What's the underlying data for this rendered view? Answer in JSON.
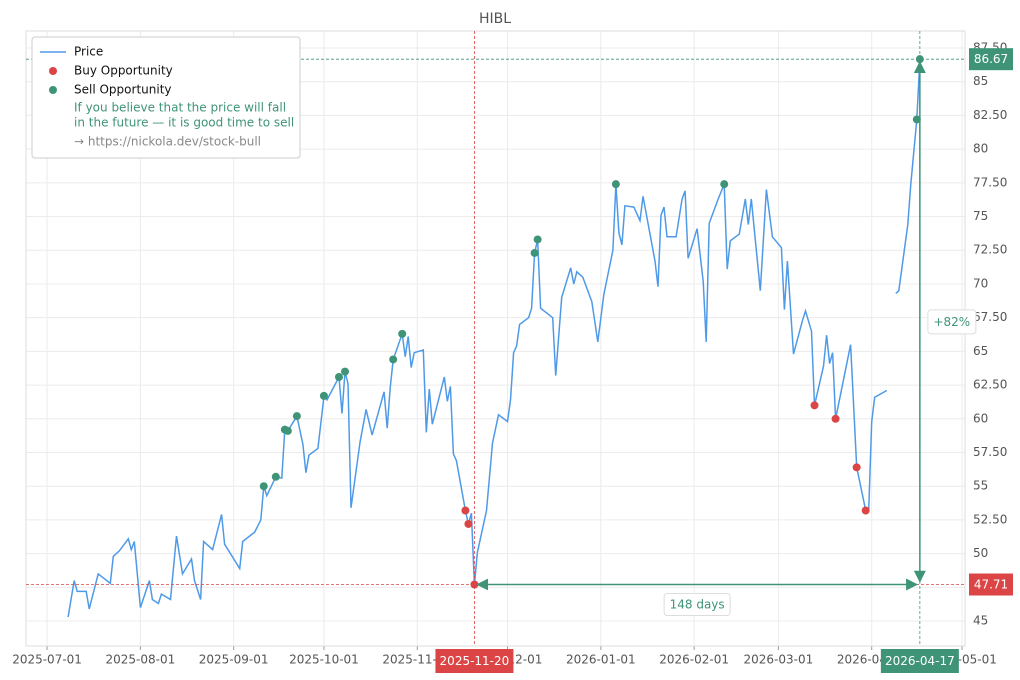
{
  "chart_data": {
    "type": "line",
    "title": "HIBL",
    "xlim": [
      "2025-06-24",
      "2026-05-02"
    ],
    "xticks": [
      "2025-07-01",
      "2025-08-01",
      "2025-09-01",
      "2025-10-01",
      "2025-11-01",
      "2025-12-01",
      "2026-01-01",
      "2026-02-01",
      "2026-03-01",
      "2026-04-01",
      "2026-05-01"
    ],
    "ylim": [
      43.15,
      88.76
    ],
    "yticks": [
      45,
      {
        "value": 47.5,
        "label": "47.50"
      },
      50,
      {
        "value": 52.5,
        "label": "52.50"
      },
      55,
      {
        "value": 57.5,
        "label": "57.50"
      },
      60,
      {
        "value": 62.5,
        "label": "62.50"
      },
      65,
      {
        "value": 67.5,
        "label": "67.50"
      },
      70,
      {
        "value": 72.5,
        "label": "72.50"
      },
      75,
      {
        "value": 77.5,
        "label": "77.50"
      },
      80,
      {
        "value": 82.5,
        "label": "82.50"
      },
      85,
      {
        "value": 87.5,
        "label": "87.50"
      }
    ],
    "grid": true,
    "legend": "upper left",
    "legend_notes": [
      "If you believe that the price will fall",
      "in the future — it is good time to sell",
      "→ https://nickola.dev/stock-bull"
    ],
    "series": [
      {
        "name": "Price",
        "type": "line",
        "color": "#4f9ae8",
        "x": [
          "2025-07-08",
          "2025-07-10",
          "2025-07-11",
          "2025-07-14",
          "2025-07-15",
          "2025-07-18",
          "2025-07-22",
          "2025-07-23",
          "2025-07-25",
          "2025-07-28",
          "2025-07-29",
          "2025-07-30",
          "2025-08-01",
          "2025-08-04",
          "2025-08-05",
          "2025-08-07",
          "2025-08-08",
          "2025-08-11",
          "2025-08-13",
          "2025-08-15",
          "2025-08-18",
          "2025-08-19",
          "2025-08-21",
          "2025-08-22",
          "2025-08-25",
          "2025-08-28",
          "2025-08-29",
          "2025-09-03",
          "2025-09-04",
          "2025-09-08",
          "2025-09-10",
          "2025-09-11",
          "2025-09-12",
          "2025-09-15",
          "2025-09-17",
          "2025-09-18",
          "2025-09-19",
          "2025-09-22",
          "2025-09-24",
          "2025-09-25",
          "2025-09-26",
          "2025-09-29",
          "2025-10-01",
          "2025-10-02",
          "2025-10-06",
          "2025-10-07",
          "2025-10-08",
          "2025-10-09",
          "2025-10-10",
          "2025-10-13",
          "2025-10-15",
          "2025-10-17",
          "2025-10-21",
          "2025-10-22",
          "2025-10-23",
          "2025-10-24",
          "2025-10-27",
          "2025-10-28",
          "2025-10-29",
          "2025-10-30",
          "2025-10-31",
          "2025-11-03",
          "2025-11-04",
          "2025-11-05",
          "2025-11-06",
          "2025-11-10",
          "2025-11-11",
          "2025-11-12",
          "2025-11-13",
          "2025-11-14",
          "2025-11-17",
          "2025-11-18",
          "2025-11-19",
          "2025-11-20",
          "2025-11-21",
          "2025-11-24",
          "2025-11-26",
          "2025-11-28",
          "2025-12-01",
          "2025-12-02",
          "2025-12-03",
          "2025-12-04",
          "2025-12-05",
          "2025-12-08",
          "2025-12-09",
          "2025-12-10",
          "2025-12-11",
          "2025-12-12",
          "2025-12-16",
          "2025-12-17",
          "2025-12-19",
          "2025-12-22",
          "2025-12-23",
          "2025-12-24",
          "2025-12-26",
          "2025-12-29",
          "2025-12-31",
          "2026-01-02",
          "2026-01-05",
          "2026-01-06",
          "2026-01-07",
          "2026-01-08",
          "2026-01-09",
          "2026-01-12",
          "2026-01-14",
          "2026-01-15",
          "2026-01-19",
          "2026-01-20",
          "2026-01-21",
          "2026-01-22",
          "2026-01-23",
          "2026-01-26",
          "2026-01-28",
          "2026-01-29",
          "2026-01-30",
          "2026-02-02",
          "2026-02-04",
          "2026-02-05",
          "2026-02-06",
          "2026-02-09",
          "2026-02-11",
          "2026-02-12",
          "2026-02-13",
          "2026-02-16",
          "2026-02-18",
          "2026-02-19",
          "2026-02-20",
          "2026-02-23",
          "2026-02-25",
          "2026-02-27",
          "2026-03-02",
          "2026-03-03",
          "2026-03-04",
          "2026-03-06",
          "2026-03-09",
          "2026-03-10",
          "2026-03-12",
          "2026-03-13",
          "2026-03-16",
          "2026-03-17",
          "2026-03-18",
          "2026-03-19",
          "2026-03-20",
          "2026-03-23",
          "2026-03-25",
          "2026-03-27",
          "2026-03-30",
          "2026-03-31",
          "2026-04-01",
          "2026-04-02",
          "2026-04-06",
          "2026-04-08",
          "2026-04-09",
          "2026-04-10",
          "2026-04-13",
          "2026-04-14",
          "2026-04-16",
          "2026-04-17"
        ],
        "values": [
          45.3,
          48.0,
          47.2,
          47.2,
          45.9,
          48.5,
          47.8,
          49.8,
          50.2,
          51.1,
          50.3,
          50.9,
          46.0,
          48.0,
          46.6,
          46.3,
          47.0,
          46.6,
          51.3,
          48.5,
          49.6,
          48.0,
          46.6,
          50.9,
          50.3,
          52.9,
          50.7,
          48.9,
          50.9,
          51.6,
          52.5,
          55.0,
          54.3,
          55.7,
          55.6,
          59.2,
          59.1,
          60.2,
          58.1,
          56.0,
          57.3,
          57.8,
          61.7,
          61.4,
          63.1,
          60.4,
          63.5,
          62.6,
          53.4,
          58.3,
          60.7,
          58.8,
          62.0,
          59.3,
          62.3,
          64.4,
          66.3,
          64.6,
          66.1,
          63.8,
          64.9,
          65.1,
          59.0,
          62.2,
          59.6,
          63.1,
          61.3,
          62.4,
          57.4,
          56.9,
          53.2,
          52.2,
          53.0,
          47.71,
          50.1,
          53.2,
          58.2,
          60.3,
          59.8,
          61.4,
          64.9,
          65.4,
          67.0,
          67.5,
          68.2,
          72.3,
          73.3,
          68.2,
          67.5,
          63.2,
          69.0,
          71.2,
          70.0,
          70.9,
          70.5,
          68.7,
          65.7,
          69.2,
          72.5,
          77.4,
          73.8,
          72.9,
          75.8,
          75.7,
          74.7,
          76.5,
          71.7,
          69.8,
          75.1,
          75.7,
          73.5,
          73.5,
          76.3,
          76.9,
          71.9,
          74.1,
          70.2,
          65.7,
          74.5,
          76.3,
          77.4,
          71.1,
          73.2,
          73.7,
          76.3,
          74.4,
          76.3,
          69.5,
          77.0,
          73.5,
          72.7,
          68.1,
          71.7,
          64.8,
          67.3,
          68.0,
          66.5,
          61.0,
          63.9,
          66.2,
          64.1,
          64.9,
          60.0,
          63.3,
          65.5,
          56.4,
          53.2,
          53.2,
          59.8,
          61.6,
          62.1,
          null,
          69.3,
          69.5,
          74.4,
          77.4,
          82.2,
          86.67
        ]
      },
      {
        "name": "Buy Opportunity",
        "type": "scatter",
        "color": "#dc4545",
        "x": [
          "2025-11-17",
          "2025-11-18",
          "2025-11-20",
          "2026-03-13",
          "2026-03-20",
          "2026-03-27",
          "2026-03-30"
        ],
        "values": [
          53.2,
          52.2,
          47.71,
          61.0,
          60.0,
          56.4,
          53.2
        ]
      },
      {
        "name": "Sell Opportunity",
        "type": "scatter",
        "color": "#3f9478",
        "x": [
          "2025-09-11",
          "2025-09-15",
          "2025-09-18",
          "2025-09-19",
          "2025-09-22",
          "2025-10-01",
          "2025-10-06",
          "2025-10-08",
          "2025-10-24",
          "2025-10-27",
          "2025-12-10",
          "2025-12-11",
          "2026-01-06",
          "2026-02-11",
          "2026-04-16",
          "2026-04-17"
        ],
        "values": [
          55.0,
          55.7,
          59.2,
          59.1,
          60.2,
          61.7,
          63.1,
          63.5,
          64.4,
          66.3,
          72.3,
          73.3,
          77.4,
          77.4,
          82.2,
          86.67
        ]
      }
    ],
    "hlines": [
      {
        "value": 86.67,
        "color": "#3f9478"
      },
      {
        "value": 47.71,
        "color": "#dc4545"
      }
    ],
    "vlines": [
      {
        "value": "2025-11-20",
        "color": "#dc4545"
      },
      {
        "value": "2026-04-17",
        "color": "#3f9478"
      }
    ],
    "annotations": [
      "148 days",
      "+82%"
    ]
  }
}
